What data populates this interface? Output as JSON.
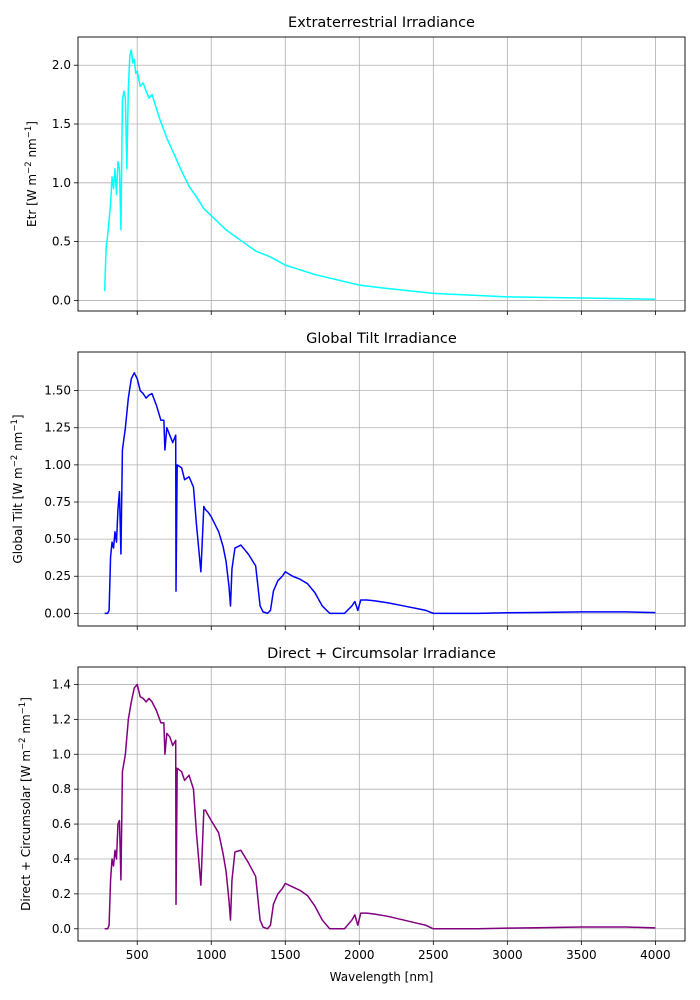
{
  "chart_data": [
    {
      "type": "line",
      "title": "Extraterrestrial Irradiance",
      "ylabel_main": "Etr [W m",
      "ylabel_sup1": "−2",
      "ylabel_mid": " nm",
      "ylabel_sup2": "−1",
      "ylabel_end": "]",
      "xlabel": "",
      "show_x_tick_labels": false,
      "xlim": [
        100,
        4200
      ],
      "ylim": [
        -0.09,
        2.24
      ],
      "xticks": [
        500,
        1000,
        1500,
        2000,
        2500,
        3000,
        3500,
        4000
      ],
      "yticks": [
        0.0,
        0.5,
        1.0,
        1.5,
        2.0
      ],
      "ytick_labels": [
        "0.0",
        "0.5",
        "1.0",
        "1.5",
        "2.0"
      ],
      "grid": true,
      "color": "#00ffff",
      "series": [
        {
          "x": [
            280,
            290,
            300,
            310,
            320,
            330,
            340,
            350,
            360,
            370,
            380,
            390,
            400,
            410,
            420,
            430,
            440,
            450,
            460,
            470,
            480,
            490,
            500,
            520,
            540,
            560,
            580,
            600,
            650,
            700,
            750,
            800,
            850,
            900,
            950,
            1000,
            1100,
            1200,
            1300,
            1400,
            1500,
            1600,
            1700,
            1800,
            2000,
            2200,
            2500,
            3000,
            3500,
            4000
          ],
          "y": [
            0.08,
            0.45,
            0.55,
            0.68,
            0.82,
            1.05,
            0.95,
            1.12,
            0.9,
            1.18,
            1.12,
            0.6,
            1.7,
            1.78,
            1.72,
            1.12,
            1.8,
            2.08,
            2.13,
            2.02,
            2.05,
            1.93,
            1.95,
            1.82,
            1.85,
            1.78,
            1.72,
            1.75,
            1.55,
            1.38,
            1.24,
            1.1,
            0.97,
            0.88,
            0.78,
            0.72,
            0.6,
            0.51,
            0.42,
            0.37,
            0.3,
            0.26,
            0.22,
            0.19,
            0.13,
            0.1,
            0.06,
            0.03,
            0.02,
            0.01
          ]
        }
      ]
    },
    {
      "type": "line",
      "title": "Global Tilt Irradiance",
      "ylabel_main": "Global Tilt [W m",
      "ylabel_sup1": "−2",
      "ylabel_mid": " nm",
      "ylabel_sup2": "−1",
      "ylabel_end": "]",
      "xlabel": "",
      "show_x_tick_labels": false,
      "xlim": [
        100,
        4200
      ],
      "ylim": [
        -0.085,
        1.76
      ],
      "xticks": [
        500,
        1000,
        1500,
        2000,
        2500,
        3000,
        3500,
        4000
      ],
      "yticks": [
        0.0,
        0.25,
        0.5,
        0.75,
        1.0,
        1.25,
        1.5
      ],
      "ytick_labels": [
        "0.00",
        "0.25",
        "0.50",
        "0.75",
        "1.00",
        "1.25",
        "1.50"
      ],
      "grid": true,
      "color": "#0000ff",
      "series": [
        {
          "x": [
            280,
            300,
            310,
            320,
            330,
            340,
            350,
            360,
            370,
            380,
            390,
            400,
            420,
            440,
            460,
            480,
            500,
            520,
            540,
            560,
            580,
            600,
            630,
            660,
            680,
            687,
            700,
            720,
            740,
            760,
            762,
            770,
            800,
            820,
            850,
            880,
            900,
            930,
            950,
            960,
            980,
            1000,
            1050,
            1080,
            1100,
            1120,
            1130,
            1140,
            1160,
            1200,
            1250,
            1300,
            1330,
            1350,
            1380,
            1400,
            1420,
            1450,
            1480,
            1500,
            1550,
            1600,
            1650,
            1700,
            1750,
            1800,
            1850,
            1900,
            1950,
            1970,
            1990,
            2010,
            2050,
            2100,
            2200,
            2300,
            2400,
            2450,
            2500,
            2550,
            2600,
            2800,
            3000,
            3200,
            3500,
            3800,
            4000
          ],
          "y": [
            0.0,
            0.0,
            0.02,
            0.38,
            0.48,
            0.44,
            0.55,
            0.48,
            0.7,
            0.82,
            0.4,
            1.1,
            1.25,
            1.45,
            1.58,
            1.62,
            1.58,
            1.5,
            1.48,
            1.45,
            1.47,
            1.48,
            1.4,
            1.3,
            1.3,
            1.1,
            1.25,
            1.2,
            1.15,
            1.2,
            0.15,
            1.0,
            0.98,
            0.9,
            0.92,
            0.85,
            0.6,
            0.28,
            0.72,
            0.7,
            0.68,
            0.65,
            0.55,
            0.45,
            0.35,
            0.18,
            0.05,
            0.3,
            0.44,
            0.46,
            0.4,
            0.32,
            0.05,
            0.01,
            0.0,
            0.02,
            0.15,
            0.22,
            0.25,
            0.28,
            0.25,
            0.23,
            0.2,
            0.14,
            0.05,
            0.0,
            0.0,
            0.0,
            0.05,
            0.08,
            0.02,
            0.09,
            0.09,
            0.085,
            0.07,
            0.05,
            0.03,
            0.02,
            0.0,
            0.0,
            0.0,
            0.0,
            0.004,
            0.006,
            0.01,
            0.01,
            0.005
          ]
        }
      ]
    },
    {
      "type": "line",
      "title": "Direct + Circumsolar Irradiance",
      "ylabel_main": "Direct + Circumsolar [W m",
      "ylabel_sup1": "−2",
      "ylabel_mid": " nm",
      "ylabel_sup2": "−1",
      "ylabel_end": "]",
      "xlabel": "Wavelength [nm]",
      "show_x_tick_labels": true,
      "xlim": [
        100,
        4200
      ],
      "ylim": [
        -0.07,
        1.5
      ],
      "xticks": [
        500,
        1000,
        1500,
        2000,
        2500,
        3000,
        3500,
        4000
      ],
      "xtick_labels": [
        "500",
        "1000",
        "1500",
        "2000",
        "2500",
        "3000",
        "3500",
        "4000"
      ],
      "yticks": [
        0.0,
        0.2,
        0.4,
        0.6,
        0.8,
        1.0,
        1.2,
        1.4
      ],
      "ytick_labels": [
        "0.0",
        "0.2",
        "0.4",
        "0.6",
        "0.8",
        "1.0",
        "1.2",
        "1.4"
      ],
      "grid": true,
      "color": "#800080",
      "series": [
        {
          "x": [
            280,
            300,
            310,
            320,
            330,
            340,
            350,
            360,
            370,
            380,
            390,
            400,
            420,
            440,
            460,
            480,
            500,
            520,
            540,
            560,
            580,
            600,
            630,
            660,
            680,
            687,
            700,
            720,
            740,
            760,
            762,
            770,
            800,
            820,
            850,
            880,
            900,
            930,
            950,
            960,
            980,
            1000,
            1050,
            1080,
            1100,
            1120,
            1130,
            1140,
            1160,
            1200,
            1250,
            1300,
            1330,
            1350,
            1380,
            1400,
            1420,
            1450,
            1480,
            1500,
            1550,
            1600,
            1650,
            1700,
            1750,
            1800,
            1850,
            1900,
            1950,
            1970,
            1990,
            2010,
            2050,
            2100,
            2200,
            2300,
            2400,
            2450,
            2500,
            2550,
            2600,
            2800,
            3000,
            3200,
            3500,
            3800,
            4000
          ],
          "y": [
            0.0,
            0.0,
            0.02,
            0.28,
            0.4,
            0.36,
            0.45,
            0.4,
            0.6,
            0.62,
            0.28,
            0.9,
            1.0,
            1.2,
            1.3,
            1.38,
            1.4,
            1.33,
            1.32,
            1.3,
            1.32,
            1.3,
            1.25,
            1.18,
            1.18,
            1.0,
            1.12,
            1.1,
            1.05,
            1.08,
            0.14,
            0.92,
            0.9,
            0.85,
            0.88,
            0.8,
            0.55,
            0.25,
            0.68,
            0.68,
            0.65,
            0.62,
            0.55,
            0.43,
            0.33,
            0.16,
            0.05,
            0.28,
            0.44,
            0.45,
            0.38,
            0.3,
            0.05,
            0.01,
            0.0,
            0.02,
            0.14,
            0.2,
            0.23,
            0.26,
            0.24,
            0.22,
            0.19,
            0.13,
            0.05,
            0.0,
            0.0,
            0.0,
            0.05,
            0.08,
            0.02,
            0.09,
            0.09,
            0.085,
            0.07,
            0.05,
            0.03,
            0.02,
            0.0,
            0.0,
            0.0,
            0.0,
            0.004,
            0.006,
            0.01,
            0.01,
            0.005
          ]
        }
      ]
    }
  ]
}
